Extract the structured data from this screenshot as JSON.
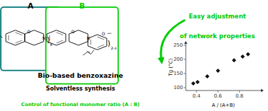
{
  "chart_data": {
    "type": "scatter",
    "x": [
      0.37,
      0.41,
      0.5,
      0.6,
      0.75,
      0.83,
      0.88
    ],
    "values": [
      115,
      120,
      140,
      160,
      197,
      210,
      218
    ],
    "color": "#111111",
    "marker": "diamond",
    "xlabel": "A / (A+B)",
    "ylabel": "Tg (°C)",
    "xlim": [
      0.3,
      1.0
    ],
    "ylim": [
      90,
      255
    ],
    "xticks": [
      0.4,
      0.6,
      0.8
    ],
    "yticks": [
      100,
      150,
      200,
      250
    ],
    "annotations": [
      {
        "text": "A"
      },
      {
        "text": "B",
        "color": "#00CC00"
      },
      {
        "text": "Bio-based benzoxazine"
      },
      {
        "text": "Solventless synthesis"
      },
      {
        "text": "Control of functional monomer ratio (A : B)",
        "color": "#00CC00"
      },
      {
        "text": "Easy adjustment",
        "color": "#00CC00"
      },
      {
        "text": "of network properties",
        "color": "#00CC00"
      },
      {
        "text": "O"
      },
      {
        "text": "N"
      },
      {
        "text": ")"
      },
      {
        "text": "x"
      },
      {
        "text": "O"
      },
      {
        "text": "N"
      },
      {
        "text": "O"
      },
      {
        "text": ")"
      },
      {
        "text": "2-x"
      }
    ]
  }
}
